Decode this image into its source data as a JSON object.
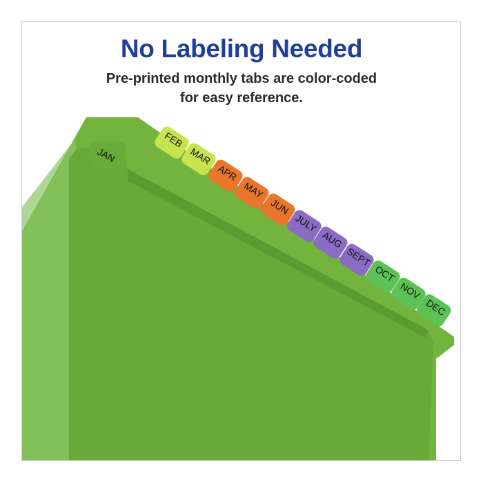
{
  "headline": "No Labeling Needed",
  "subtitle_line1": "Pre-printed monthly tabs are color-coded",
  "subtitle_line2": "for easy reference.",
  "colors": {
    "headline": "#1f3f9b",
    "folder": "#6aab3a",
    "yellow_green": "#c7e34e",
    "orange": "#e9762a",
    "purple": "#8a6cc4",
    "green": "#5cc255"
  },
  "tabs": [
    {
      "label": "JAN",
      "color": "#6aab3a"
    },
    {
      "label": "FEB",
      "color": "#c7e34e"
    },
    {
      "label": "MAR",
      "color": "#c7e34e"
    },
    {
      "label": "APR",
      "color": "#e9762a"
    },
    {
      "label": "MAY",
      "color": "#e9762a"
    },
    {
      "label": "JUN",
      "color": "#e9762a"
    },
    {
      "label": "JULY",
      "color": "#8a6cc4"
    },
    {
      "label": "AUG",
      "color": "#8a6cc4"
    },
    {
      "label": "SEPT",
      "color": "#8a6cc4"
    },
    {
      "label": "OCT",
      "color": "#5cc255"
    },
    {
      "label": "NOV",
      "color": "#5cc255"
    },
    {
      "label": "DEC",
      "color": "#5cc255"
    }
  ]
}
